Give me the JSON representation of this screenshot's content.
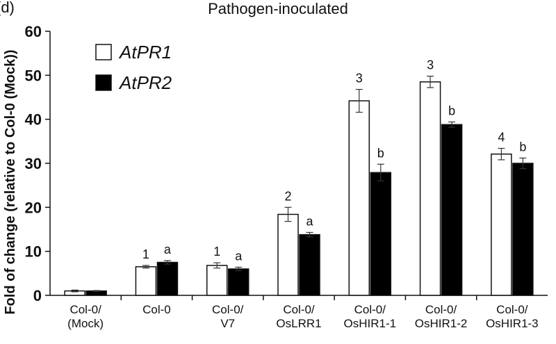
{
  "panel_label": "(d)",
  "chart_data": {
    "type": "bar",
    "title": "Pathogen-inoculated",
    "ylabel": "Fold of change (relative to Col-0 (Mock))",
    "xlabel": "",
    "ylim": [
      0,
      60
    ],
    "yticks": [
      0,
      10,
      20,
      30,
      40,
      50,
      60
    ],
    "grid": false,
    "legend_position": "top-left",
    "categories": [
      [
        "Col-0/",
        "(Mock)"
      ],
      [
        "Col-0"
      ],
      [
        "Col-0/",
        "V7"
      ],
      [
        "Col-0/",
        "OsLRR1"
      ],
      [
        "Col-0/",
        "OsHIR1-1"
      ],
      [
        "Col-0/",
        "OsHIR1-2"
      ],
      [
        "Col-0/",
        "OsHIR1-3"
      ]
    ],
    "series": [
      {
        "name": "AtPR1",
        "fill": "#ffffff",
        "values": [
          1.0,
          6.5,
          6.8,
          18.4,
          44.2,
          48.5,
          32.1
        ],
        "errors": [
          0.2,
          0.3,
          0.6,
          1.6,
          2.6,
          1.3,
          1.3
        ],
        "significance": [
          "",
          "1",
          "1",
          "2",
          "3",
          "3",
          "4"
        ]
      },
      {
        "name": "AtPR2",
        "fill": "#000000",
        "values": [
          1.0,
          7.5,
          6.0,
          13.8,
          27.9,
          38.8,
          30.0
        ],
        "errors": [
          0.1,
          0.4,
          0.4,
          0.5,
          1.9,
          0.6,
          1.2
        ],
        "significance": [
          "",
          "a",
          "a",
          "a",
          "b",
          "b",
          "b"
        ]
      }
    ]
  }
}
